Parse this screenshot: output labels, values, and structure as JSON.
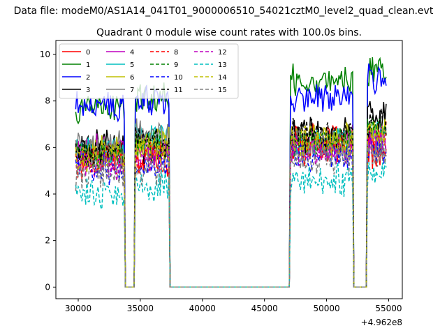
{
  "figure": {
    "suptitle": "Data file: modeM0/AS1A14_041T01_9000006510_54021cztM0_level2_quad_clean.evt",
    "title": "Quadrant 0 module wise count rates with 100.0s bins."
  },
  "chart_data": {
    "type": "line",
    "title": "Quadrant 0 module wise count rates with 100.0s bins.",
    "xlabel": "",
    "ylabel": "",
    "x_offset_label": "+4.962e8",
    "xlim": [
      28200,
      56100
    ],
    "ylim": [
      -0.5,
      10.6
    ],
    "xticks": [
      30000,
      35000,
      40000,
      45000,
      50000,
      55000
    ],
    "xtick_labels": [
      "30000",
      "35000",
      "40000",
      "45000",
      "50000",
      "55000"
    ],
    "yticks": [
      0,
      2,
      4,
      6,
      8,
      10
    ],
    "ytick_labels": [
      "0",
      "2",
      "4",
      "6",
      "8",
      "10"
    ],
    "grid": false,
    "legend_placement": "top-left",
    "segments": [
      {
        "x_start": 29800,
        "x_end": 33700,
        "on": true
      },
      {
        "x_start": 33800,
        "x_end": 34500,
        "on": false
      },
      {
        "x_start": 34600,
        "x_end": 37300,
        "on": true
      },
      {
        "x_start": 37400,
        "x_end": 47000,
        "on": false
      },
      {
        "x_start": 47100,
        "x_end": 52100,
        "on": true
      },
      {
        "x_start": 52200,
        "x_end": 53200,
        "on": false
      },
      {
        "x_start": 53300,
        "x_end": 54800,
        "on": true
      }
    ],
    "series": [
      {
        "name": "0",
        "color": "#ff0000",
        "dash": false,
        "levels": [
          5.6,
          5.5,
          6.3,
          5.8
        ]
      },
      {
        "name": "1",
        "color": "#008000",
        "dash": false,
        "levels": [
          7.7,
          8.1,
          8.9,
          9.3
        ]
      },
      {
        "name": "2",
        "color": "#0000ff",
        "dash": false,
        "levels": [
          7.8,
          8.0,
          8.2,
          8.9
        ]
      },
      {
        "name": "3",
        "color": "#000000",
        "dash": false,
        "levels": [
          6.1,
          6.0,
          6.6,
          7.3
        ]
      },
      {
        "name": "4",
        "color": "#bf00bf",
        "dash": false,
        "levels": [
          5.9,
          5.9,
          6.1,
          6.4
        ]
      },
      {
        "name": "5",
        "color": "#00bfbf",
        "dash": false,
        "levels": [
          5.8,
          6.4,
          6.2,
          6.6
        ]
      },
      {
        "name": "6",
        "color": "#bfbf00",
        "dash": false,
        "levels": [
          5.9,
          6.2,
          6.4,
          6.7
        ]
      },
      {
        "name": "7",
        "color": "#808080",
        "dash": false,
        "levels": [
          6.0,
          6.6,
          6.2,
          6.3
        ]
      },
      {
        "name": "8",
        "color": "#ff0000",
        "dash": true,
        "levels": [
          5.4,
          5.6,
          6.0,
          6.5
        ]
      },
      {
        "name": "9",
        "color": "#008000",
        "dash": true,
        "levels": [
          5.7,
          6.1,
          6.3,
          6.8
        ]
      },
      {
        "name": "10",
        "color": "#0000ff",
        "dash": true,
        "levels": [
          5.1,
          5.3,
          5.6,
          5.9
        ]
      },
      {
        "name": "11",
        "color": "#000000",
        "dash": true,
        "levels": [
          5.8,
          6.2,
          6.5,
          7.0
        ]
      },
      {
        "name": "12",
        "color": "#bf00bf",
        "dash": true,
        "levels": [
          5.3,
          5.5,
          5.9,
          6.3
        ]
      },
      {
        "name": "13",
        "color": "#00bfbf",
        "dash": true,
        "levels": [
          4.0,
          4.4,
          4.6,
          4.8
        ]
      },
      {
        "name": "14",
        "color": "#bfbf00",
        "dash": true,
        "levels": [
          5.6,
          5.9,
          6.2,
          6.6
        ]
      },
      {
        "name": "15",
        "color": "#808080",
        "dash": true,
        "levels": [
          4.9,
          5.0,
          5.5,
          5.7
        ]
      }
    ]
  }
}
